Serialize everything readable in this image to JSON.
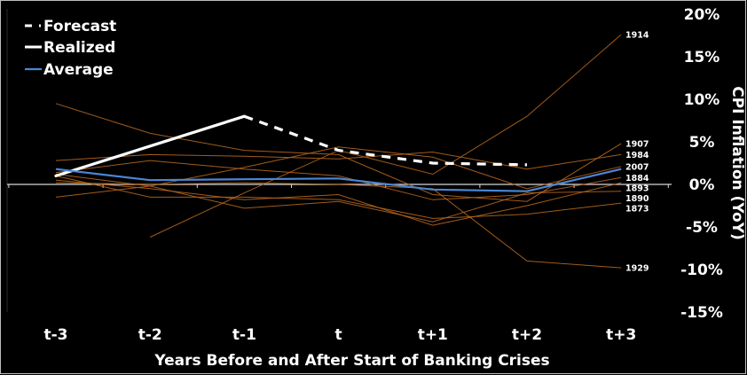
{
  "chart_data": {
    "type": "line",
    "xlabel": "Years Before and After Start of Banking Crises",
    "ylabel": "CPI Inflation (YoY)",
    "categories": [
      "t-3",
      "t-2",
      "t-1",
      "t",
      "t+1",
      "t+2",
      "t+3"
    ],
    "ylim": [
      -15,
      20
    ],
    "y_ticks": [
      20,
      15,
      10,
      5,
      0,
      -5,
      -10,
      -15
    ],
    "y_tick_labels": [
      "20%",
      "15%",
      "10%",
      "5%",
      "0%",
      "-5%",
      "-10%",
      "-15%"
    ],
    "y_axis_side": "right",
    "grid": false,
    "legend": {
      "placement": "top-left",
      "entries": [
        {
          "name": "Forecast",
          "style": "dashed",
          "color": "#ffffff"
        },
        {
          "name": "Realized",
          "style": "solid",
          "color": "#ffffff"
        },
        {
          "name": "Average",
          "style": "solid",
          "color": "#4a86d6"
        }
      ]
    },
    "colors": {
      "background": "#000000",
      "historical": "#b5651d",
      "average": "#4a86d6",
      "realized": "#ffffff",
      "forecast": "#ffffff"
    },
    "series": [
      {
        "name": "Realized",
        "x": [
          "t-3",
          "t-2",
          "t-1"
        ],
        "values": [
          1.0,
          4.5,
          8.0
        ]
      },
      {
        "name": "Forecast",
        "x": [
          "t-1",
          "t",
          "t+1",
          "t+2"
        ],
        "values": [
          8.0,
          4.0,
          2.5,
          2.3
        ]
      },
      {
        "name": "Average",
        "x": [
          "t-3",
          "t-2",
          "t-1",
          "t",
          "t+1",
          "t+2",
          "t+3"
        ],
        "values": [
          1.8,
          0.5,
          0.6,
          0.7,
          -0.6,
          -0.8,
          1.8
        ]
      }
    ],
    "historical_series": [
      {
        "label": "1914",
        "values": [
          null,
          -6.2,
          -1.0,
          4.0,
          1.2,
          8.0,
          17.6
        ]
      },
      {
        "label": "1907",
        "values": [
          9.5,
          6.0,
          4.0,
          3.5,
          -1.2,
          -2.0,
          4.8
        ]
      },
      {
        "label": "1984",
        "values": [
          2.8,
          3.5,
          3.3,
          3.0,
          3.8,
          1.8,
          3.5
        ]
      },
      {
        "label": "2007",
        "values": [
          1.2,
          -0.2,
          2.0,
          4.4,
          3.2,
          -0.5,
          2.1
        ]
      },
      {
        "label": "1884",
        "values": [
          1.4,
          2.8,
          1.8,
          1.0,
          -1.8,
          -1.2,
          0.8
        ]
      },
      {
        "label": "1893",
        "values": [
          0.5,
          -0.5,
          -1.8,
          -1.2,
          -4.8,
          -2.5,
          0.2
        ]
      },
      {
        "label": "1890",
        "values": [
          -1.5,
          -0.2,
          -2.8,
          -2.0,
          -4.4,
          -1.0,
          -0.8
        ]
      },
      {
        "label": "1873",
        "values": [
          1.0,
          -1.5,
          -1.5,
          -1.8,
          -4.0,
          -3.5,
          -2.2
        ]
      },
      {
        "label": "1929",
        "values": [
          0.2,
          0.0,
          0.2,
          0.0,
          -0.5,
          -9.0,
          -9.8
        ]
      }
    ]
  }
}
